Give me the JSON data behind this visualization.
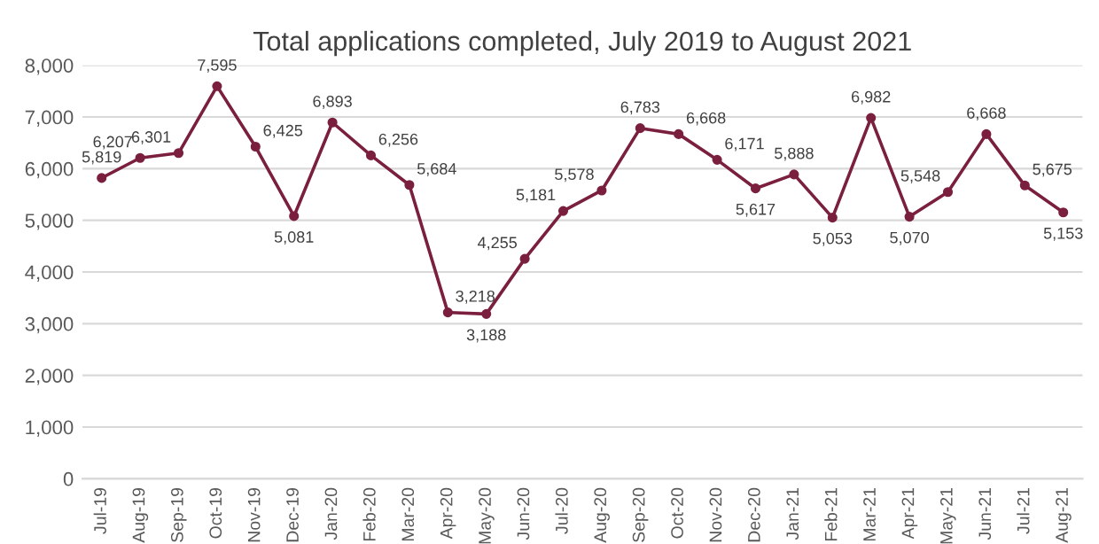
{
  "chart_data": {
    "type": "line",
    "title": "Total applications completed, July 2019 to August 2021",
    "categories": [
      "Jul-19",
      "Aug-19",
      "Sep-19",
      "Oct-19",
      "Nov-19",
      "Dec-19",
      "Jan-20",
      "Feb-20",
      "Mar-20",
      "Apr-20",
      "May-20",
      "Jun-20",
      "Jul-20",
      "Aug-20",
      "Sep-20",
      "Oct-20",
      "Nov-20",
      "Dec-20",
      "Jan-21",
      "Feb-21",
      "Mar-21",
      "Apr-21",
      "May-21",
      "Jun-21",
      "Jul-21",
      "Aug-21"
    ],
    "series": [
      {
        "color": "#7b1f3e",
        "values": [
          5819,
          6207,
          6301,
          7595,
          6425,
          5081,
          6893,
          6256,
          5684,
          3218,
          3188,
          4255,
          5181,
          5578,
          6783,
          6668,
          6171,
          5617,
          5888,
          5053,
          6982,
          5070,
          5548,
          6668,
          5675,
          5153
        ],
        "value_labels": [
          "5,819",
          "6,207",
          "6,301",
          "7,595",
          "6,425",
          "5,081",
          "6,893",
          "6,256",
          "5,684",
          "3,218",
          "3,188",
          "4,255",
          "5,181",
          "5,578",
          "6,783",
          "6,668",
          "6,171",
          "5,617",
          "5,888",
          "5,053",
          "6,982",
          "5,070",
          "5,548",
          "6,668",
          "5,675",
          "5,153"
        ]
      }
    ],
    "ylim": [
      0,
      8000
    ],
    "yticks": [
      0,
      {
        "value": 1000,
        "label": "1,000"
      },
      {
        "value": 2000,
        "label": "2,000"
      },
      {
        "value": 3000,
        "label": "3,000"
      },
      {
        "value": 4000,
        "label": "4,000"
      },
      {
        "value": 5000,
        "label": "5,000"
      },
      {
        "value": 6000,
        "label": "6,000"
      },
      {
        "value": 7000,
        "label": "7,000"
      },
      {
        "value": 8000,
        "label": "8,000"
      }
    ],
    "grid": "y",
    "marker": "circle",
    "line_style": "solid",
    "legend": false
  }
}
